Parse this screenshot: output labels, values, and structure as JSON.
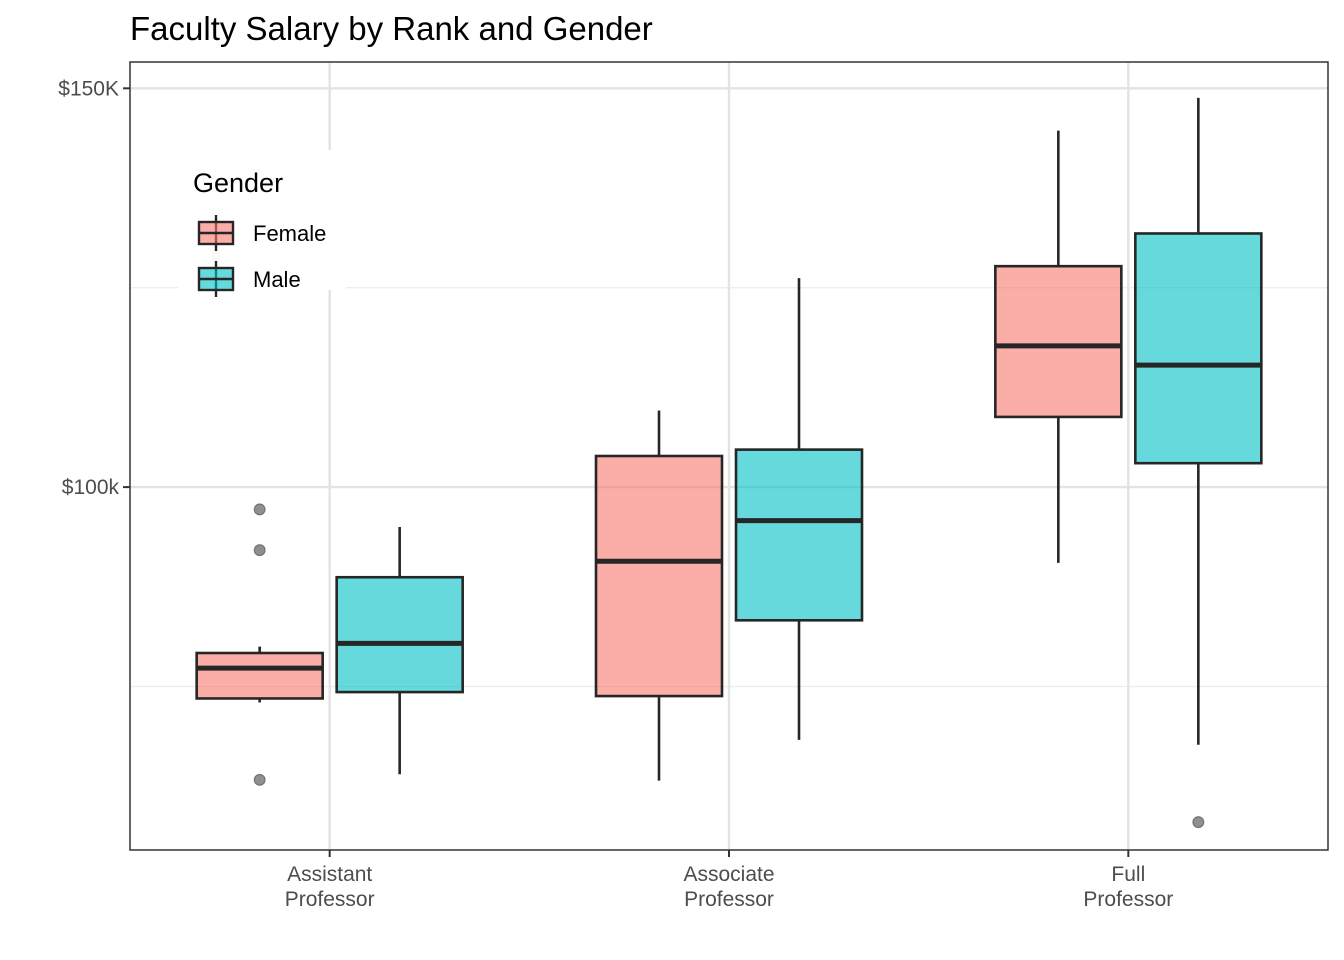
{
  "chart_data": {
    "type": "boxplot",
    "title": "Faculty Salary by Rank and Gender",
    "xlabel": "",
    "ylabel": "",
    "categories": [
      "Assistant Professor",
      "Associate Professor",
      "Full Professor"
    ],
    "category_labels": [
      [
        "Assistant",
        "Professor"
      ],
      [
        "Associate",
        "Professor"
      ],
      [
        "Full",
        "Professor"
      ]
    ],
    "y_ticks": [
      {
        "value": 100000,
        "label": "$100k"
      },
      {
        "value": 150000,
        "label": "$150K"
      }
    ],
    "y_minor_gridlines": [
      75000,
      125000
    ],
    "ylim": [
      54500,
      153300
    ],
    "grid": true,
    "legend": {
      "title": "Gender",
      "placement": "top-left",
      "entries": [
        "Female",
        "Male"
      ]
    },
    "colors": {
      "Female": "#f8766d",
      "Male": "#00bfc4"
    },
    "series": [
      {
        "name": "Female",
        "boxes": [
          {
            "category": "Assistant Professor",
            "whisker_low": 73000,
            "q1": 73500,
            "median": 77300,
            "q3": 79200,
            "whisker_high": 80000,
            "outliers": [
              97200,
              92100,
              63300
            ]
          },
          {
            "category": "Associate Professor",
            "whisker_low": 63200,
            "q1": 73800,
            "median": 90700,
            "q3": 103900,
            "whisker_high": 109600,
            "outliers": []
          },
          {
            "category": "Full Professor",
            "whisker_low": 90500,
            "q1": 108800,
            "median": 117700,
            "q3": 127700,
            "whisker_high": 144700,
            "outliers": []
          }
        ]
      },
      {
        "name": "Male",
        "boxes": [
          {
            "category": "Assistant Professor",
            "whisker_low": 64000,
            "q1": 74300,
            "median": 80400,
            "q3": 88700,
            "whisker_high": 95000,
            "outliers": []
          },
          {
            "category": "Associate Professor",
            "whisker_low": 68300,
            "q1": 83300,
            "median": 95800,
            "q3": 104700,
            "whisker_high": 126200,
            "outliers": []
          },
          {
            "category": "Full Professor",
            "whisker_low": 67700,
            "q1": 103000,
            "median": 115300,
            "q3": 131800,
            "whisker_high": 148800,
            "outliers": [
              58000
            ]
          }
        ]
      }
    ]
  }
}
